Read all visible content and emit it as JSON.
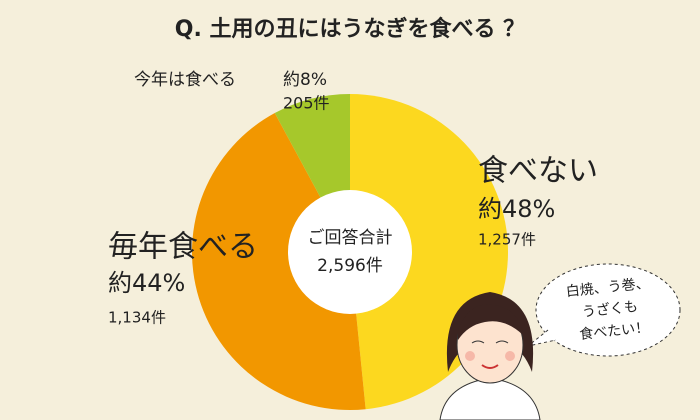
{
  "chart_data": {
    "type": "pie",
    "title": "Q. 土用の丑にはうなぎを食べる ？",
    "categories": [
      "食べない",
      "毎年食べる",
      "今年は食べる"
    ],
    "values": [
      1257,
      1134,
      205
    ],
    "value_labels": [
      "1,257件",
      "1,134件",
      "205件"
    ],
    "percents": [
      48,
      44,
      8
    ],
    "percent_labels": [
      "約48%",
      "約44%",
      "約8%"
    ],
    "colors": [
      "#fcd81f",
      "#f29700",
      "#a6c82b"
    ],
    "total": 2596,
    "total_label": "2,596件",
    "center_label": "ご回答合計",
    "annotations": [
      "白焼、う巻、",
      "うざくも",
      "食べたい！"
    ]
  }
}
